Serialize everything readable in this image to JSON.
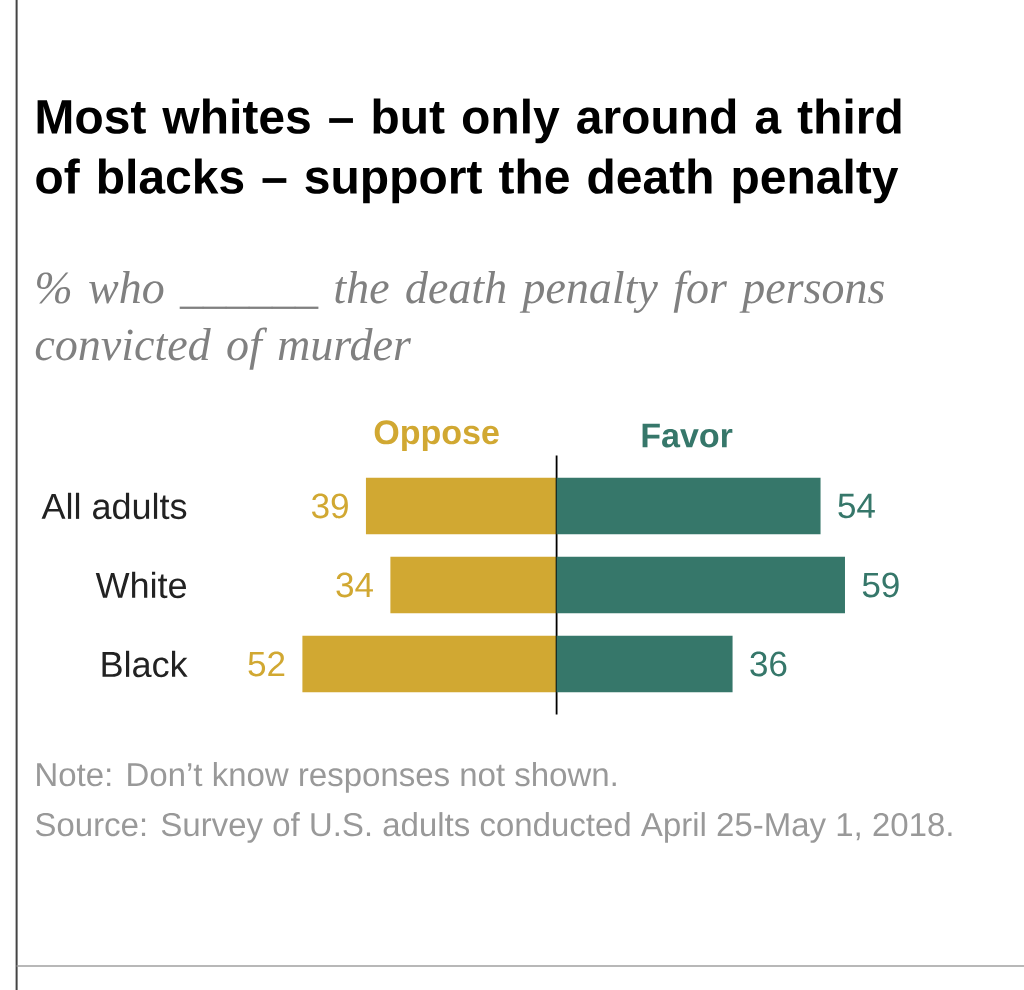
{
  "chart_data": [
    {
      "type": "bar",
      "orientation": "horizontal",
      "title": "Most whites – but only around a third of blacks – support the death penalty",
      "subtitle": "% who ______ the death penalty for persons convicted of murder",
      "categories": [
        "All adults",
        "White",
        "Black"
      ],
      "series": [
        {
          "name": "Oppose",
          "color": "#d1a832",
          "values": [
            39,
            34,
            52
          ]
        }
      ],
      "data_labels": true,
      "xlim": [
        52,
        0
      ],
      "tick_labels": "y",
      "annotations": [
        "Note: Don’t know responses not shown.",
        "Source: Survey of U.S. adults conducted April 25-May 1, 2018."
      ]
    },
    {
      "type": "bar",
      "orientation": "horizontal",
      "categories": [
        null,
        null,
        null
      ],
      "series": [
        {
          "name": "Favor",
          "color": "#36776a",
          "values": [
            54,
            59,
            36
          ]
        }
      ],
      "data_labels": true,
      "xlim": [
        0,
        59
      ],
      "tick_labels": false
    }
  ]
}
